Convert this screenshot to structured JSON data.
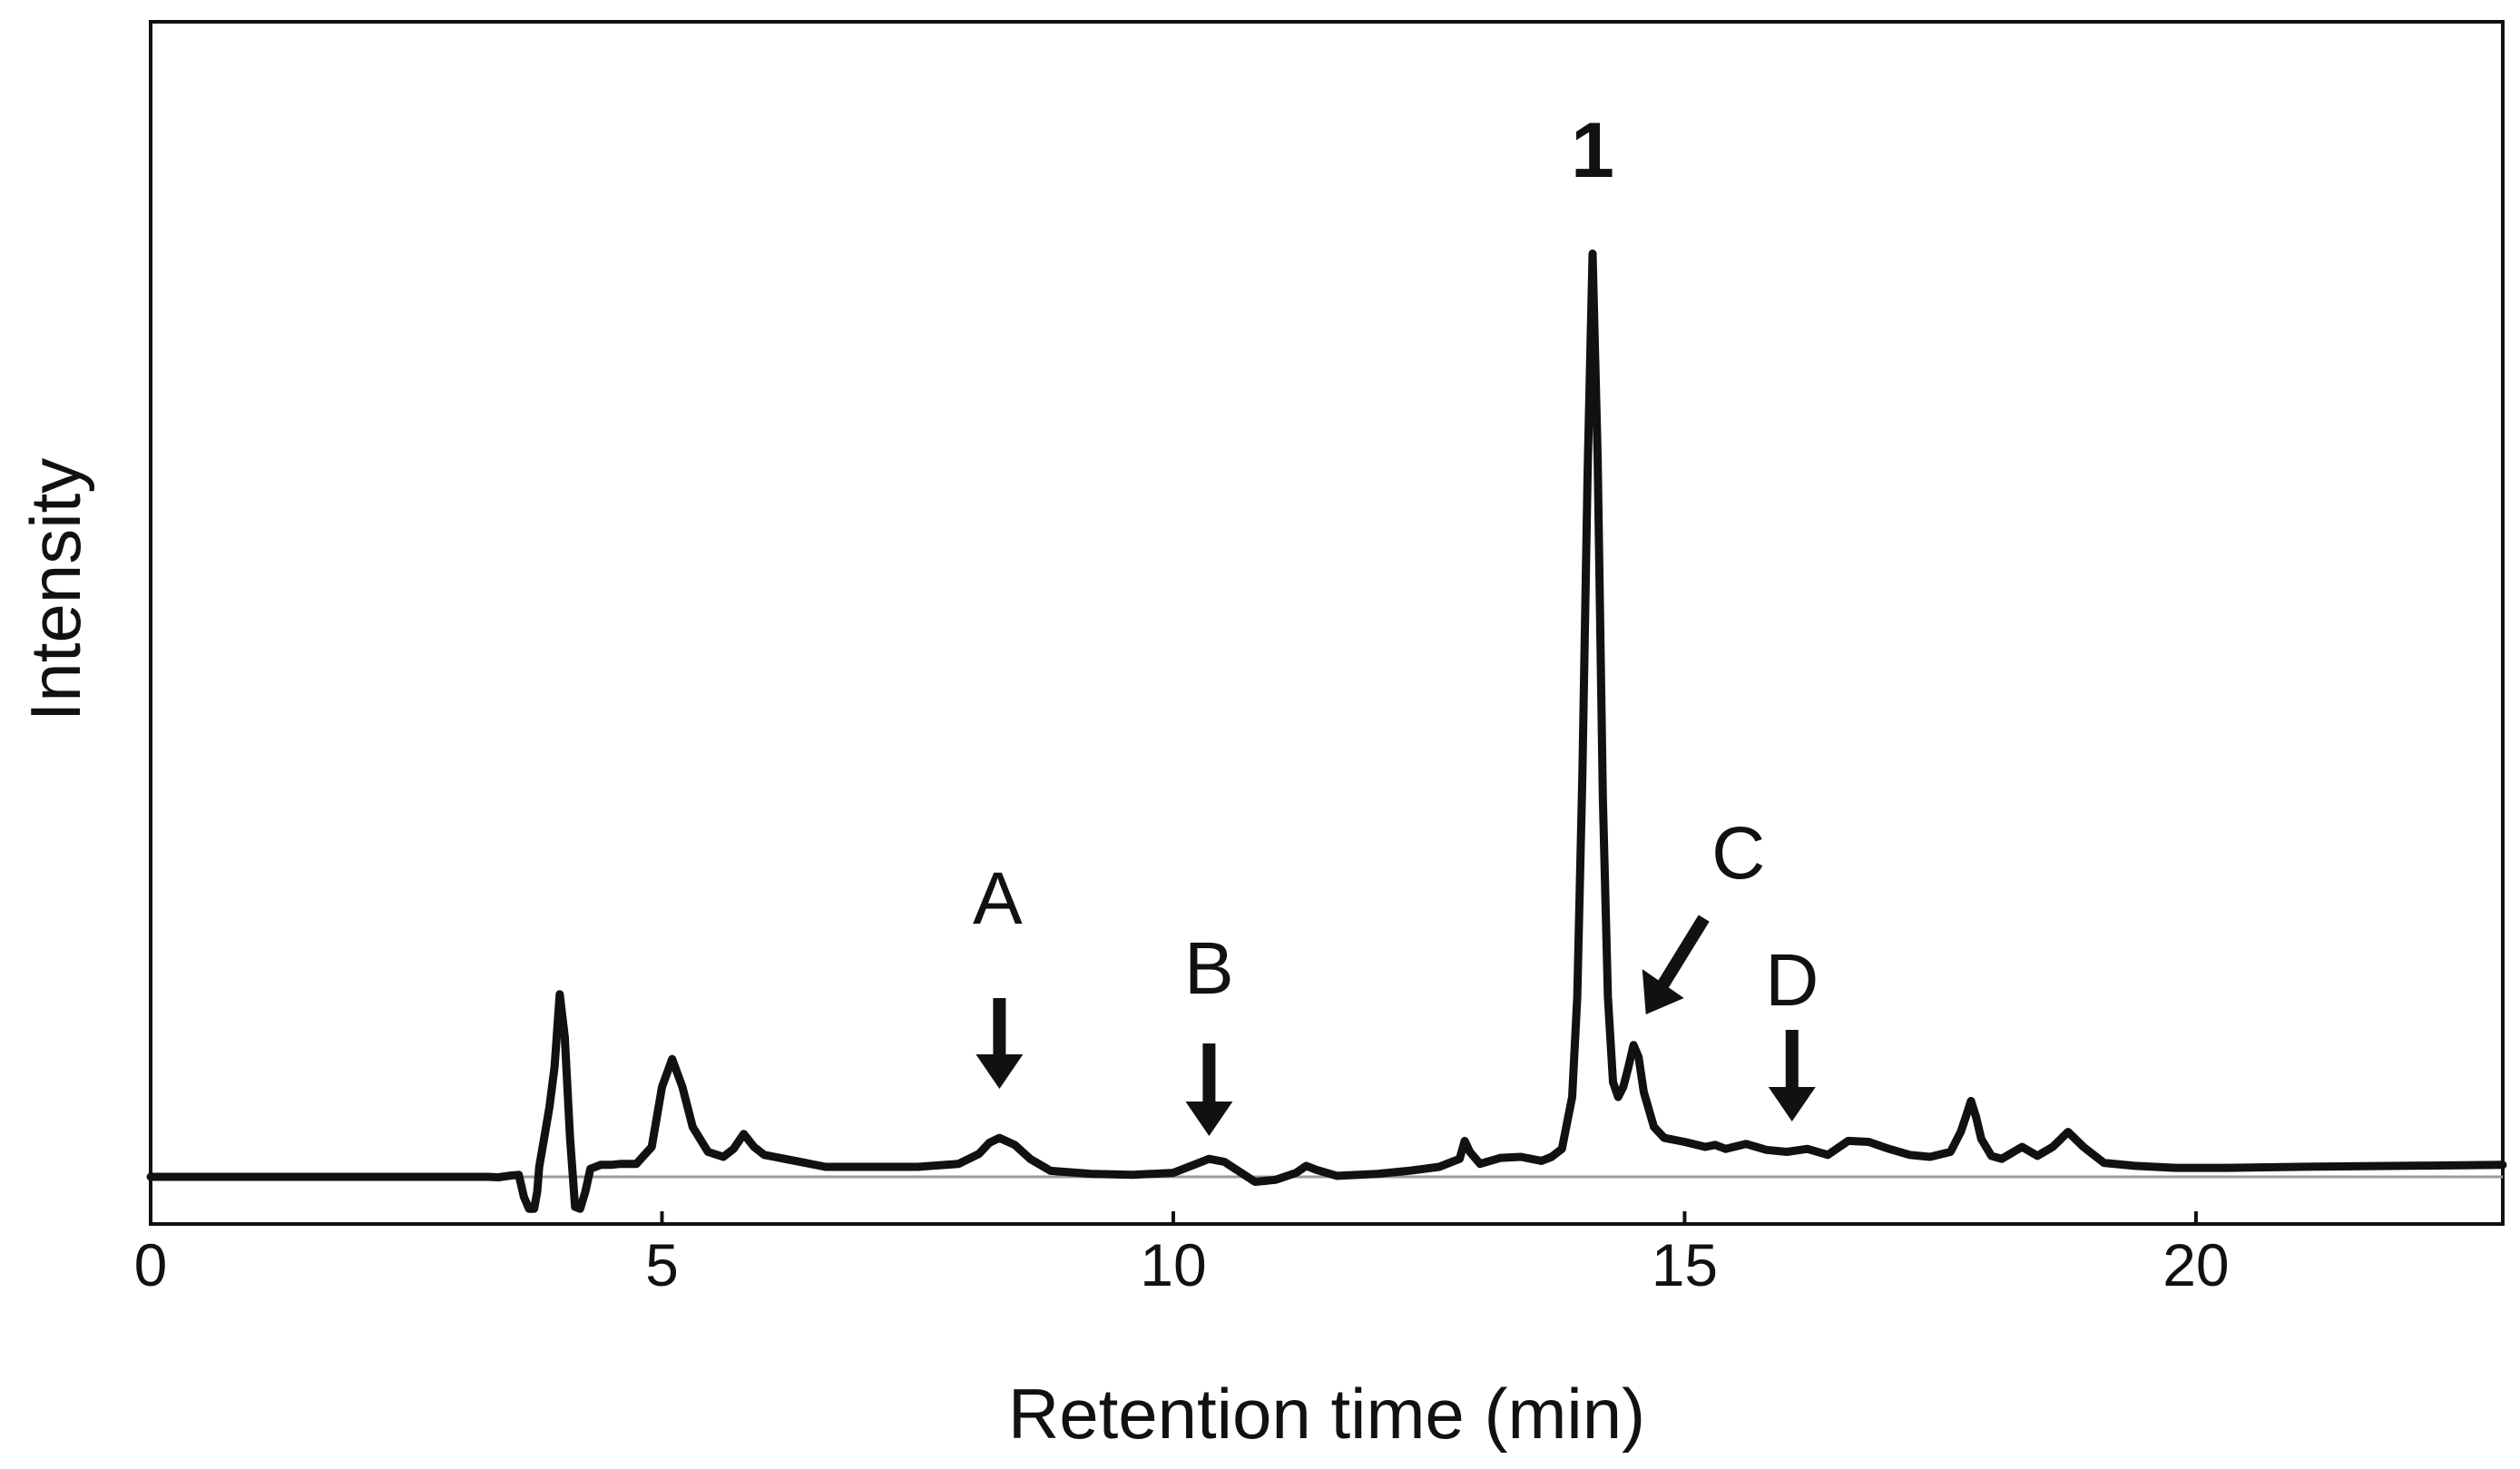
{
  "chart_data": {
    "type": "line",
    "title": "",
    "xlabel": "Retention time (min)",
    "ylabel": "Intensity",
    "xlim": [
      0,
      23
    ],
    "x_ticks": [
      0,
      5,
      10,
      15,
      20
    ],
    "y_ticks": [],
    "grid": false,
    "baseline": true,
    "series": [
      {
        "name": "",
        "color": "#111111",
        "x": [
          0,
          3.3,
          3.4,
          3.5,
          3.55,
          3.6,
          3.65,
          3.7,
          3.75,
          3.78,
          3.8,
          3.85,
          3.9,
          3.95,
          4.0,
          4.05,
          4.1,
          4.15,
          4.2,
          4.25,
          4.3,
          4.4,
          4.5,
          4.6,
          4.75,
          4.9,
          5.0,
          5.1,
          5.2,
          5.3,
          5.45,
          5.6,
          5.7,
          5.8,
          5.9,
          6.0,
          6.1,
          6.2,
          6.4,
          6.6,
          7.0,
          7.5,
          7.9,
          8.1,
          8.2,
          8.3,
          8.45,
          8.6,
          8.8,
          9.2,
          9.6,
          10.0,
          10.2,
          10.35,
          10.5,
          10.65,
          10.8,
          11.0,
          11.2,
          11.3,
          11.4,
          11.6,
          12.0,
          12.3,
          12.6,
          12.8,
          12.85,
          12.9,
          13.0,
          13.2,
          13.4,
          13.6,
          13.7,
          13.8,
          13.9,
          13.95,
          14.0,
          14.05,
          14.1,
          14.15,
          14.2,
          14.25,
          14.3,
          14.35,
          14.4,
          14.45,
          14.5,
          14.55,
          14.6,
          14.7,
          14.8,
          15.0,
          15.2,
          15.3,
          15.4,
          15.6,
          15.8,
          16.0,
          16.2,
          16.4,
          16.6,
          16.8,
          17.0,
          17.2,
          17.4,
          17.6,
          17.7,
          17.75,
          17.8,
          17.85,
          17.9,
          18.0,
          18.1,
          18.3,
          18.45,
          18.6,
          18.75,
          18.9,
          19.1,
          19.4,
          19.8,
          20.3,
          21.0,
          22.0,
          23.0
        ],
        "y": [
          0,
          0,
          -0.05,
          0.1,
          0.15,
          0.2,
          -2.0,
          -3.2,
          -3.2,
          -1.5,
          1.0,
          4.0,
          7.0,
          11.0,
          18.3,
          14.0,
          4.0,
          -3.0,
          -3.2,
          -1.5,
          0.8,
          1.2,
          1.2,
          1.3,
          1.3,
          3.0,
          9.0,
          11.8,
          9.0,
          5.0,
          2.5,
          2.0,
          2.8,
          4.3,
          3.0,
          2.2,
          2.0,
          1.8,
          1.4,
          1.0,
          1.0,
          1.0,
          1.3,
          2.3,
          3.4,
          3.9,
          3.2,
          1.8,
          0.6,
          0.3,
          0.2,
          0.4,
          1.2,
          1.8,
          1.5,
          0.5,
          -0.5,
          -0.3,
          0.4,
          1.1,
          0.7,
          0.1,
          0.3,
          0.6,
          1.0,
          1.8,
          3.6,
          2.5,
          1.3,
          1.9,
          2.0,
          1.6,
          2.0,
          2.8,
          8.0,
          18.0,
          40.0,
          70.0,
          92.5,
          72.0,
          38.0,
          18.0,
          9.5,
          8.0,
          9.0,
          11.0,
          13.2,
          12.0,
          8.5,
          5.0,
          3.9,
          3.5,
          3.0,
          3.2,
          2.8,
          3.3,
          2.7,
          2.5,
          2.8,
          2.2,
          3.6,
          3.5,
          2.8,
          2.2,
          2.0,
          2.5,
          4.5,
          6.0,
          7.6,
          6.0,
          3.8,
          2.1,
          1.8,
          3.0,
          2.1,
          3.0,
          4.5,
          3.0,
          1.4,
          1.1,
          0.9,
          0.9,
          1.0,
          1.1,
          1.2
        ]
      }
    ],
    "annotations": [
      {
        "label": "1",
        "x": 14.1,
        "style": "bold",
        "arrow": "none"
      },
      {
        "label": "A",
        "x": 8.3,
        "style": "normal",
        "arrow": "down"
      },
      {
        "label": "B",
        "x": 10.35,
        "style": "normal",
        "arrow": "down"
      },
      {
        "label": "C",
        "x": 14.55,
        "style": "normal",
        "arrow": "diagonal"
      },
      {
        "label": "D",
        "x": 16.05,
        "style": "normal",
        "arrow": "down"
      }
    ]
  }
}
